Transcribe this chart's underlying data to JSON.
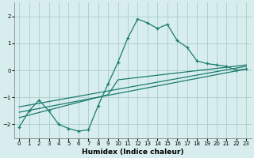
{
  "xlabel": "Humidex (Indice chaleur)",
  "bg_color": "#d8eeee",
  "grid_color": "#aacccc",
  "line_color": "#1a7a6e",
  "xlim": [
    -0.5,
    23.5
  ],
  "ylim": [
    -2.5,
    2.5
  ],
  "xticks": [
    0,
    1,
    2,
    3,
    4,
    5,
    6,
    7,
    8,
    9,
    10,
    11,
    12,
    13,
    14,
    15,
    16,
    17,
    18,
    19,
    20,
    21,
    22,
    23
  ],
  "yticks": [
    -2,
    -1,
    0,
    1,
    2
  ],
  "curve_x": [
    0,
    1,
    2,
    3,
    4,
    5,
    6,
    7,
    8,
    9,
    10,
    11,
    12,
    13,
    14,
    15,
    16,
    17,
    18,
    19,
    20,
    21,
    22,
    23
  ],
  "curve_y": [
    -2.1,
    -1.5,
    -1.1,
    -1.5,
    -2.0,
    -2.15,
    -2.25,
    -2.2,
    -1.3,
    -0.5,
    0.3,
    1.2,
    1.9,
    1.75,
    1.55,
    1.7,
    1.1,
    0.85,
    0.35,
    0.25,
    0.2,
    0.15,
    0.0,
    0.05
  ],
  "line1_x": [
    0,
    23
  ],
  "line1_y": [
    -1.35,
    0.15
  ],
  "line2_x": [
    0,
    23
  ],
  "line2_y": [
    -1.55,
    0.05
  ],
  "line3_x": [
    0,
    9,
    10,
    23
  ],
  "line3_y": [
    -1.75,
    -0.9,
    -0.35,
    0.2
  ]
}
